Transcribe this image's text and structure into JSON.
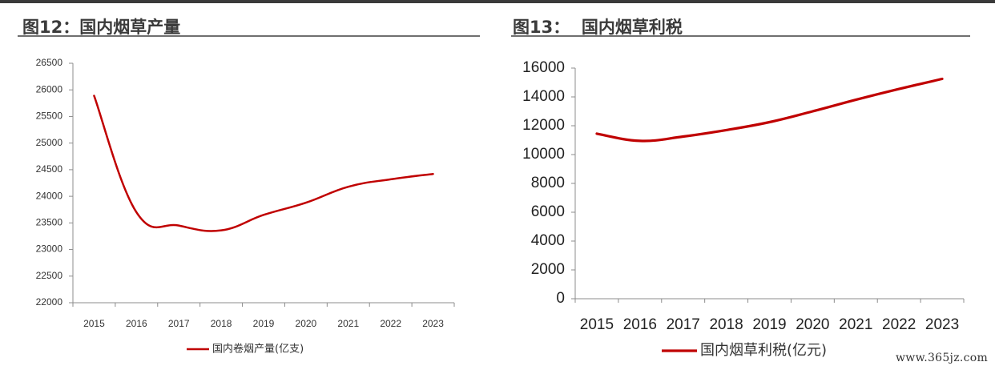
{
  "watermark": "www.365jz.com",
  "chart_data": [
    {
      "type": "line",
      "title": "图12：国内烟草产量",
      "categories": [
        "2015",
        "2016",
        "2017",
        "2018",
        "2019",
        "2020",
        "2021",
        "2022",
        "2023"
      ],
      "series": [
        {
          "name": "国内卷烟产量(亿支)",
          "color": "#c00000",
          "values": [
            25890,
            23700,
            23450,
            23360,
            23650,
            23880,
            24180,
            24320,
            24420
          ]
        }
      ],
      "ylim": [
        22000,
        26500
      ],
      "yticks": [
        22000,
        22500,
        23000,
        23500,
        24000,
        24500,
        25000,
        25500,
        26000,
        26500
      ],
      "xlabel": "",
      "ylabel": "",
      "grid": false,
      "legend": "bottom-center"
    },
    {
      "type": "line",
      "title": "图13：  国内烟草利税",
      "categories": [
        "2015",
        "2016",
        "2017",
        "2018",
        "2019",
        "2020",
        "2021",
        "2022",
        "2023"
      ],
      "series": [
        {
          "name": "国内烟草利税(亿元)",
          "color": "#c00000",
          "values": [
            11450,
            10950,
            11250,
            11700,
            12250,
            13000,
            13800,
            14550,
            15250
          ]
        }
      ],
      "ylim": [
        0,
        16000
      ],
      "yticks": [
        0,
        2000,
        4000,
        6000,
        8000,
        10000,
        12000,
        14000,
        16000
      ],
      "xlabel": "",
      "ylabel": "",
      "grid": false,
      "legend": "bottom-center"
    }
  ]
}
